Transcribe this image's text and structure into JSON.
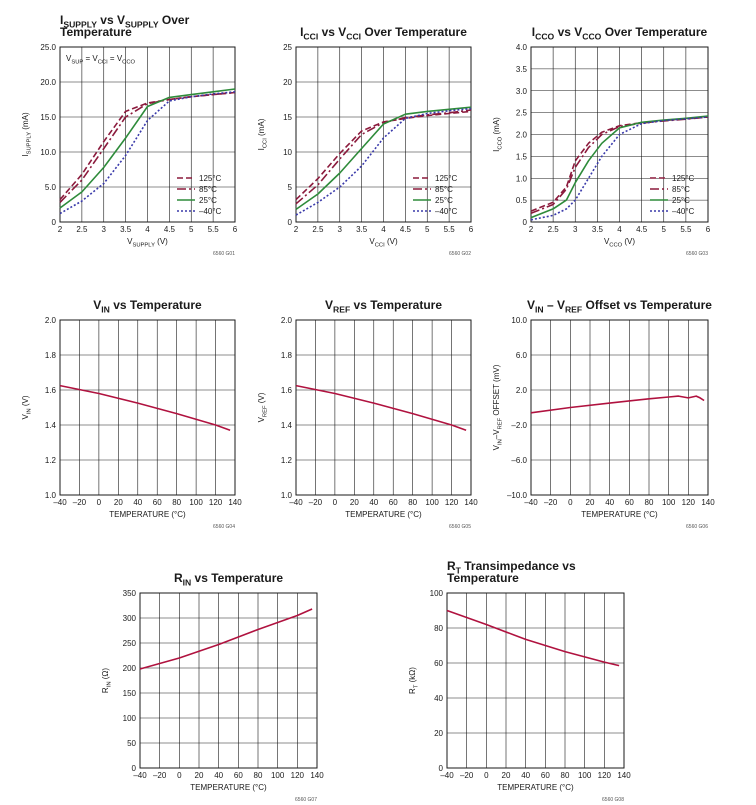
{
  "chart_data": [
    {
      "id": "g01",
      "type": "line",
      "title": [
        "I_SUPPLY vs V_SUPPLY Over",
        "Temperature"
      ],
      "xlabel": "V_SUPPLY (V)",
      "ylabel": "I_SUPPLY (mA)",
      "xlim": [
        2,
        6
      ],
      "ylim": [
        0,
        25
      ],
      "x_ticks": [
        2,
        2.5,
        3,
        3.5,
        4,
        4.5,
        5,
        5.5,
        6
      ],
      "x_tick_labels": [
        "2",
        "2.5",
        "3",
        "3.5",
        "4",
        "4.5",
        "5",
        "5.5",
        "6"
      ],
      "y_ticks": [
        0,
        5,
        10,
        15,
        20,
        25
      ],
      "y_tick_labels": [
        "0",
        "5.0",
        "10.0",
        "15.0",
        "20.0",
        "25.0"
      ],
      "annotation": "V_SUP = V_CCI = V_CCO",
      "code": "6560 G01",
      "legend_position": "bottom-right",
      "series": [
        {
          "name": "125°C",
          "color": "#8b1a3c",
          "dash": "6,3",
          "x": [
            2,
            2.5,
            3,
            3.5,
            4,
            4.5,
            5,
            5.5,
            6
          ],
          "y": [
            3.2,
            6.8,
            11.5,
            15.8,
            17.0,
            17.5,
            17.9,
            18.2,
            18.5
          ]
        },
        {
          "name": "85°C",
          "color": "#8b1a3c",
          "dash": "9,3,2,3",
          "x": [
            2,
            2.5,
            3,
            3.5,
            4,
            4.5,
            5,
            5.5,
            6
          ],
          "y": [
            2.8,
            6.0,
            10.5,
            15.0,
            16.9,
            17.5,
            17.9,
            18.2,
            18.5
          ]
        },
        {
          "name": "25°C",
          "color": "#2e8b3a",
          "dash": "",
          "x": [
            2,
            2.5,
            3,
            3.5,
            4,
            4.5,
            5,
            5.5,
            6
          ],
          "y": [
            2.0,
            4.3,
            7.8,
            12.0,
            16.5,
            17.8,
            18.2,
            18.6,
            19.0
          ]
        },
        {
          "name": "–40°C",
          "color": "#3a3aaa",
          "dash": "2,2",
          "x": [
            2,
            2.5,
            3,
            3.5,
            4,
            4.5,
            5,
            5.5,
            6
          ],
          "y": [
            1.2,
            3.0,
            5.5,
            9.5,
            14.5,
            17.3,
            17.9,
            18.3,
            18.6
          ]
        }
      ]
    },
    {
      "id": "g02",
      "type": "line",
      "title": [
        "I_CCI vs V_CCI Over Temperature"
      ],
      "xlabel": "V_CCI (V)",
      "ylabel": "I_CCI (mA)",
      "xlim": [
        2,
        6
      ],
      "ylim": [
        0,
        25
      ],
      "x_ticks": [
        2,
        2.5,
        3,
        3.5,
        4,
        4.5,
        5,
        5.5,
        6
      ],
      "x_tick_labels": [
        "2",
        "2.5",
        "3",
        "3.5",
        "4",
        "4.5",
        "5",
        "5.5",
        "6"
      ],
      "y_ticks": [
        0,
        5,
        10,
        15,
        20,
        25
      ],
      "y_tick_labels": [
        "0",
        "5",
        "10",
        "15",
        "20",
        "25"
      ],
      "code": "6560 G02",
      "legend_position": "bottom-right",
      "series": [
        {
          "name": "125°C",
          "color": "#8b1a3c",
          "dash": "6,3",
          "x": [
            2,
            2.5,
            3,
            3.5,
            4,
            4.5,
            5,
            5.5,
            6
          ],
          "y": [
            3.2,
            6.2,
            9.8,
            13.0,
            14.3,
            14.8,
            15.2,
            15.5,
            15.8
          ]
        },
        {
          "name": "85°C",
          "color": "#8b1a3c",
          "dash": "9,3,2,3",
          "x": [
            2,
            2.5,
            3,
            3.5,
            4,
            4.5,
            5,
            5.5,
            6
          ],
          "y": [
            2.6,
            5.3,
            9.0,
            12.5,
            14.2,
            14.9,
            15.3,
            15.6,
            16.0
          ]
        },
        {
          "name": "25°C",
          "color": "#2e8b3a",
          "dash": "",
          "x": [
            2,
            2.5,
            3,
            3.5,
            4,
            4.5,
            5,
            5.5,
            6
          ],
          "y": [
            1.8,
            4.0,
            7.0,
            10.5,
            14.0,
            15.4,
            15.8,
            16.1,
            16.4
          ]
        },
        {
          "name": "–40°C",
          "color": "#3a3aaa",
          "dash": "2,2",
          "x": [
            2,
            2.5,
            3,
            3.5,
            4,
            4.5,
            5,
            5.5,
            6
          ],
          "y": [
            1.0,
            2.8,
            5.0,
            8.0,
            12.0,
            14.8,
            15.5,
            15.9,
            16.2
          ]
        }
      ]
    },
    {
      "id": "g03",
      "type": "line",
      "title": [
        "I_CCO vs V_CCO Over Temperature"
      ],
      "xlabel": "V_CCO (V)",
      "ylabel": "I_CCO (mA)",
      "xlim": [
        2,
        6
      ],
      "ylim": [
        0,
        4
      ],
      "x_ticks": [
        2,
        2.5,
        3,
        3.5,
        4,
        4.5,
        5,
        5.5,
        6
      ],
      "x_tick_labels": [
        "2",
        "2.5",
        "3",
        "3.5",
        "4",
        "4.5",
        "5",
        "5.5",
        "6"
      ],
      "y_ticks": [
        0,
        0.5,
        1,
        1.5,
        2,
        2.5,
        3,
        3.5,
        4
      ],
      "y_tick_labels": [
        "0",
        "0.5",
        "1.0",
        "1.5",
        "2.0",
        "2.5",
        "3.0",
        "3.5",
        "4.0"
      ],
      "code": "6560 G03",
      "legend_position": "bottom-right",
      "series": [
        {
          "name": "125°C",
          "color": "#8b1a3c",
          "dash": "6,3",
          "x": [
            2,
            2.5,
            2.8,
            3,
            3.3,
            3.6,
            4,
            4.5,
            5,
            5.5,
            6
          ],
          "y": [
            0.25,
            0.45,
            0.8,
            1.4,
            1.8,
            2.05,
            2.2,
            2.27,
            2.32,
            2.36,
            2.4
          ]
        },
        {
          "name": "85°C",
          "color": "#8b1a3c",
          "dash": "9,3,2,3",
          "x": [
            2,
            2.5,
            2.8,
            3,
            3.3,
            3.6,
            4,
            4.5,
            5,
            5.5,
            6
          ],
          "y": [
            0.2,
            0.4,
            0.75,
            1.25,
            1.7,
            2.0,
            2.18,
            2.26,
            2.31,
            2.35,
            2.4
          ]
        },
        {
          "name": "25°C",
          "color": "#2e8b3a",
          "dash": "",
          "x": [
            2,
            2.5,
            2.8,
            3,
            3.3,
            3.6,
            4,
            4.5,
            5,
            5.5,
            6
          ],
          "y": [
            0.1,
            0.3,
            0.5,
            0.9,
            1.4,
            1.8,
            2.15,
            2.28,
            2.33,
            2.37,
            2.42
          ]
        },
        {
          "name": "–40°C",
          "color": "#3a3aaa",
          "dash": "2,2",
          "x": [
            2,
            2.5,
            2.8,
            3,
            3.3,
            3.6,
            4,
            4.5,
            5,
            5.5,
            6
          ],
          "y": [
            0.05,
            0.15,
            0.3,
            0.5,
            1.0,
            1.5,
            2.0,
            2.25,
            2.32,
            2.36,
            2.4
          ]
        }
      ]
    },
    {
      "id": "g04",
      "type": "line",
      "title": [
        "V_IN vs Temperature"
      ],
      "xlabel": "TEMPERATURE (°C)",
      "ylabel": "V_IN (V)",
      "xlim": [
        -40,
        140
      ],
      "ylim": [
        1.0,
        2.0
      ],
      "x_ticks": [
        -40,
        -20,
        0,
        20,
        40,
        60,
        80,
        100,
        120,
        140
      ],
      "x_tick_labels": [
        "–40",
        "–20",
        "0",
        "20",
        "40",
        "60",
        "80",
        "100",
        "120",
        "140"
      ],
      "y_ticks": [
        1.0,
        1.2,
        1.4,
        1.6,
        1.8,
        2.0
      ],
      "y_tick_labels": [
        "1.0",
        "1.2",
        "1.4",
        "1.6",
        "1.8",
        "2.0"
      ],
      "code": "6560 G04",
      "series": [
        {
          "color": "#b0123f",
          "x": [
            -40,
            0,
            40,
            80,
            120,
            135
          ],
          "y": [
            1.625,
            1.58,
            1.525,
            1.465,
            1.4,
            1.37
          ]
        }
      ]
    },
    {
      "id": "g05",
      "type": "line",
      "title": [
        "V_REF vs Temperature"
      ],
      "xlabel": "TEMPERATURE (°C)",
      "ylabel": "V_REF (V)",
      "xlim": [
        -40,
        140
      ],
      "ylim": [
        1.0,
        2.0
      ],
      "x_ticks": [
        -40,
        -20,
        0,
        20,
        40,
        60,
        80,
        100,
        120,
        140
      ],
      "x_tick_labels": [
        "–40",
        "–20",
        "0",
        "20",
        "40",
        "60",
        "80",
        "100",
        "120",
        "140"
      ],
      "y_ticks": [
        1.0,
        1.2,
        1.4,
        1.6,
        1.8,
        2.0
      ],
      "y_tick_labels": [
        "1.0",
        "1.2",
        "1.4",
        "1.6",
        "1.8",
        "2.0"
      ],
      "code": "6560 G05",
      "series": [
        {
          "color": "#b0123f",
          "x": [
            -40,
            0,
            40,
            80,
            120,
            135
          ],
          "y": [
            1.625,
            1.58,
            1.525,
            1.465,
            1.4,
            1.37
          ]
        }
      ]
    },
    {
      "id": "g06",
      "type": "line",
      "title": [
        "V_IN – V_REF Offset vs Temperature"
      ],
      "xlabel": "TEMPERATURE (°C)",
      "ylabel": "V_IN–V_REF OFFSET (mV)",
      "xlim": [
        -40,
        140
      ],
      "ylim": [
        -10,
        10
      ],
      "x_ticks": [
        -40,
        -20,
        0,
        20,
        40,
        60,
        80,
        100,
        120,
        140
      ],
      "x_tick_labels": [
        "–40",
        "–20",
        "0",
        "20",
        "40",
        "60",
        "80",
        "100",
        "120",
        "140"
      ],
      "y_ticks": [
        -10,
        -6,
        -2,
        2,
        6,
        10
      ],
      "y_tick_labels": [
        "–10.0",
        "–6.0",
        "–2.0",
        "2.0",
        "6.0",
        "10.0"
      ],
      "code": "6560 G06",
      "series": [
        {
          "color": "#b0123f",
          "x": [
            -40,
            0,
            40,
            80,
            100,
            110,
            120,
            128,
            132,
            136
          ],
          "y": [
            -0.6,
            0.0,
            0.5,
            1.0,
            1.2,
            1.3,
            1.1,
            1.3,
            1.1,
            0.8
          ]
        }
      ]
    },
    {
      "id": "g07",
      "type": "line",
      "title": [
        "R_IN vs Temperature"
      ],
      "xlabel": "TEMPERATURE (°C)",
      "ylabel": "R_IN (Ω)",
      "xlim": [
        -40,
        140
      ],
      "ylim": [
        0,
        350
      ],
      "x_ticks": [
        -40,
        -20,
        0,
        20,
        40,
        60,
        80,
        100,
        120,
        140
      ],
      "x_tick_labels": [
        "–40",
        "–20",
        "0",
        "20",
        "40",
        "60",
        "80",
        "100",
        "120",
        "140"
      ],
      "y_ticks": [
        0,
        50,
        100,
        150,
        200,
        250,
        300,
        350
      ],
      "y_tick_labels": [
        "0",
        "50",
        "100",
        "150",
        "200",
        "250",
        "300",
        "350"
      ],
      "code": "6560 G07",
      "series": [
        {
          "color": "#b0123f",
          "x": [
            -40,
            0,
            40,
            80,
            120,
            135
          ],
          "y": [
            198,
            220,
            247,
            277,
            305,
            318
          ]
        }
      ]
    },
    {
      "id": "g08",
      "type": "line",
      "title": [
        "R_T Transimpedance vs",
        "Temperature"
      ],
      "xlabel": "TEMPERATURE (°C)",
      "ylabel": "R_T (kΩ)",
      "xlim": [
        -40,
        140
      ],
      "ylim": [
        0,
        100
      ],
      "x_ticks": [
        -40,
        -20,
        0,
        20,
        40,
        60,
        80,
        100,
        120,
        140
      ],
      "x_tick_labels": [
        "–40",
        "–20",
        "0",
        "20",
        "40",
        "60",
        "80",
        "100",
        "120",
        "140"
      ],
      "y_ticks": [
        0,
        20,
        40,
        60,
        80,
        100
      ],
      "y_tick_labels": [
        "0",
        "20",
        "40",
        "60",
        "80",
        "100"
      ],
      "code": "6560 G08",
      "series": [
        {
          "color": "#b0123f",
          "x": [
            -40,
            0,
            40,
            80,
            120,
            135
          ],
          "y": [
            90,
            82,
            73.5,
            66.5,
            60.5,
            58.5
          ]
        }
      ]
    }
  ]
}
